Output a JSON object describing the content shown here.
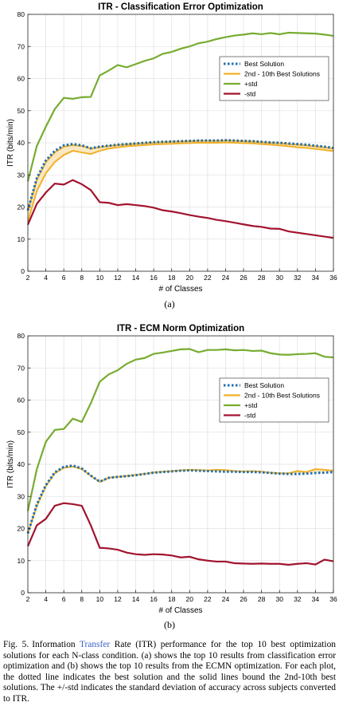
{
  "chart_data": [
    {
      "type": "line",
      "title": "ITR - Classification Error Optimization",
      "xlabel": "# of Classes",
      "ylabel": "ITR (bits/min)",
      "xlim": [
        2,
        36
      ],
      "ylim": [
        0,
        80
      ],
      "xticks": [
        2,
        4,
        6,
        8,
        10,
        12,
        14,
        16,
        18,
        20,
        22,
        24,
        26,
        28,
        30,
        32,
        34,
        36
      ],
      "yticks": [
        0,
        10,
        20,
        30,
        40,
        50,
        60,
        70,
        80
      ],
      "grid": true,
      "legend_position": "top-right",
      "x": [
        2,
        3,
        4,
        5,
        6,
        7,
        8,
        9,
        10,
        11,
        12,
        13,
        14,
        15,
        16,
        17,
        18,
        19,
        20,
        21,
        22,
        23,
        24,
        25,
        26,
        27,
        28,
        29,
        30,
        31,
        32,
        33,
        34,
        35,
        36
      ],
      "series": [
        {
          "name": "Best Solution",
          "color": "#1f6fb0",
          "style": "dotted",
          "values": [
            19,
            29,
            34.5,
            37.5,
            39.2,
            39.6,
            39.2,
            38.3,
            38.8,
            39.1,
            39.4,
            39.6,
            39.8,
            40.0,
            40.2,
            40.3,
            40.4,
            40.5,
            40.6,
            40.7,
            40.7,
            40.7,
            40.8,
            40.7,
            40.6,
            40.5,
            40.3,
            40.1,
            40.0,
            39.8,
            39.6,
            39.4,
            39.1,
            38.8,
            38.4
          ]
        },
        {
          "name": "2nd - 10th Best Solutions",
          "color": "#f0b02a",
          "style": "band",
          "upper": [
            18.8,
            28.5,
            34,
            37,
            38.8,
            39.3,
            39,
            38.2,
            38.6,
            39,
            39.3,
            39.5,
            39.7,
            39.9,
            40.1,
            40.2,
            40.3,
            40.4,
            40.5,
            40.6,
            40.6,
            40.6,
            40.7,
            40.6,
            40.5,
            40.4,
            40.2,
            40,
            39.9,
            39.6,
            39.4,
            39.2,
            38.9,
            38.6,
            38.2
          ],
          "lower": [
            15.5,
            25,
            30.5,
            34,
            36.2,
            37.5,
            37,
            36.5,
            37.5,
            38.2,
            38.6,
            38.9,
            39.1,
            39.3,
            39.5,
            39.6,
            39.7,
            39.8,
            39.9,
            40,
            40,
            40,
            40.1,
            40,
            39.9,
            39.8,
            39.6,
            39.4,
            39.2,
            38.9,
            38.6,
            38.4,
            38.1,
            37.8,
            37.4
          ]
        },
        {
          "name": "+std",
          "color": "#77ac30",
          "style": "solid",
          "values": [
            28,
            39,
            45,
            50.5,
            54,
            53.7,
            54.2,
            54.3,
            61,
            62.5,
            64.2,
            63.5,
            64.5,
            65.5,
            66.3,
            67.7,
            68.3,
            69.3,
            70,
            71,
            71.5,
            72.3,
            72.9,
            73.4,
            73.7,
            74.1,
            73.8,
            74.2,
            73.8,
            74.3,
            74.2,
            74.1,
            74,
            73.7,
            73.3
          ]
        },
        {
          "name": "-std",
          "color": "#a2142f",
          "style": "solid",
          "values": [
            14.5,
            21,
            24.5,
            27.3,
            27,
            28.4,
            27.1,
            25.3,
            21.5,
            21.3,
            20.6,
            20.9,
            20.6,
            20.3,
            19.8,
            19,
            18.6,
            18.1,
            17.5,
            17,
            16.6,
            16,
            15.6,
            15.1,
            14.6,
            14.1,
            13.8,
            13.3,
            13.2,
            12.4,
            12,
            11.6,
            11.2,
            10.8,
            10.4
          ]
        }
      ]
    },
    {
      "type": "line",
      "title": "ITR - ECM Norm Optimization",
      "xlabel": "# of Classes",
      "ylabel": "ITR (bits/min)",
      "xlim": [
        2,
        36
      ],
      "ylim": [
        0,
        80
      ],
      "xticks": [
        2,
        4,
        6,
        8,
        10,
        12,
        14,
        16,
        18,
        20,
        22,
        24,
        26,
        28,
        30,
        32,
        34,
        36
      ],
      "yticks": [
        0,
        10,
        20,
        30,
        40,
        50,
        60,
        70,
        80
      ],
      "grid": true,
      "legend_position": "top-right",
      "x": [
        2,
        3,
        4,
        5,
        6,
        7,
        8,
        9,
        10,
        11,
        12,
        13,
        14,
        15,
        16,
        17,
        18,
        19,
        20,
        21,
        22,
        23,
        24,
        25,
        26,
        27,
        28,
        29,
        30,
        31,
        32,
        33,
        34,
        35,
        36
      ],
      "series": [
        {
          "name": "Best Solution",
          "color": "#1f6fb0",
          "style": "dotted",
          "values": [
            18.5,
            27.5,
            33.5,
            37.5,
            39.2,
            39.6,
            38.7,
            36.5,
            34.6,
            35.8,
            36.1,
            36.3,
            36.6,
            37,
            37.4,
            37.6,
            37.8,
            38,
            38.1,
            38,
            37.9,
            37.8,
            37.7,
            37.7,
            37.6,
            37.6,
            37.5,
            37.3,
            37.1,
            37,
            37,
            37.1,
            37.3,
            37.4,
            37.6
          ]
        },
        {
          "name": "2nd - 10th Best Solutions",
          "color": "#f0b02a",
          "style": "band",
          "upper": [
            18.5,
            27,
            33.2,
            37.2,
            38.9,
            39.3,
            38.5,
            36.4,
            34.5,
            35.8,
            36.1,
            36.4,
            36.7,
            37,
            37.5,
            37.7,
            37.9,
            38.1,
            38.3,
            38.2,
            38.1,
            38.3,
            38.2,
            37.9,
            37.8,
            37.9,
            37.7,
            37.4,
            37.2,
            37.2,
            37.9,
            37.6,
            38.5,
            38.3,
            38
          ]
        },
        {
          "name": "+std",
          "color": "#77ac30",
          "style": "solid",
          "values": [
            25.5,
            38.5,
            47,
            50.7,
            51,
            54.2,
            53.2,
            59,
            65.7,
            68,
            69.3,
            71.3,
            72.6,
            73.1,
            74.4,
            74.8,
            75.3,
            75.8,
            75.9,
            74.9,
            75.6,
            75.6,
            75.8,
            75.5,
            75.6,
            75.3,
            75.4,
            74.6,
            74.2,
            74.1,
            74.3,
            74.4,
            74.6,
            73.5,
            73.3
          ]
        },
        {
          "name": "-std",
          "color": "#a2142f",
          "style": "solid",
          "values": [
            14.5,
            21,
            23,
            27.1,
            27.9,
            27.6,
            27.1,
            21,
            14,
            13.8,
            13.4,
            12.5,
            12,
            11.8,
            12,
            11.9,
            11.6,
            11,
            11.2,
            10.4,
            10,
            9.7,
            9.7,
            9.2,
            9.1,
            9,
            9.1,
            9,
            9,
            8.7,
            9,
            9.2,
            8.8,
            10.3,
            9.8
          ]
        }
      ]
    }
  ],
  "labels": {
    "a": "(a)",
    "b": "(b)"
  },
  "caption": {
    "fig": "Fig. 5.",
    "pre": "Information ",
    "link": "Transfer",
    "post": " Rate (ITR) performance for the top 10 best optimization solutions for each N-class condition. (a) shows the top 10 results from classification error optimization and (b) shows the top 10 results from the ECMN optimization. For each plot, the dotted line indicates the best solution and the solid lines bound the 2nd-10th best solutions. The +/-std indicates the standard deviation of accuracy across subjects converted to ITR."
  }
}
